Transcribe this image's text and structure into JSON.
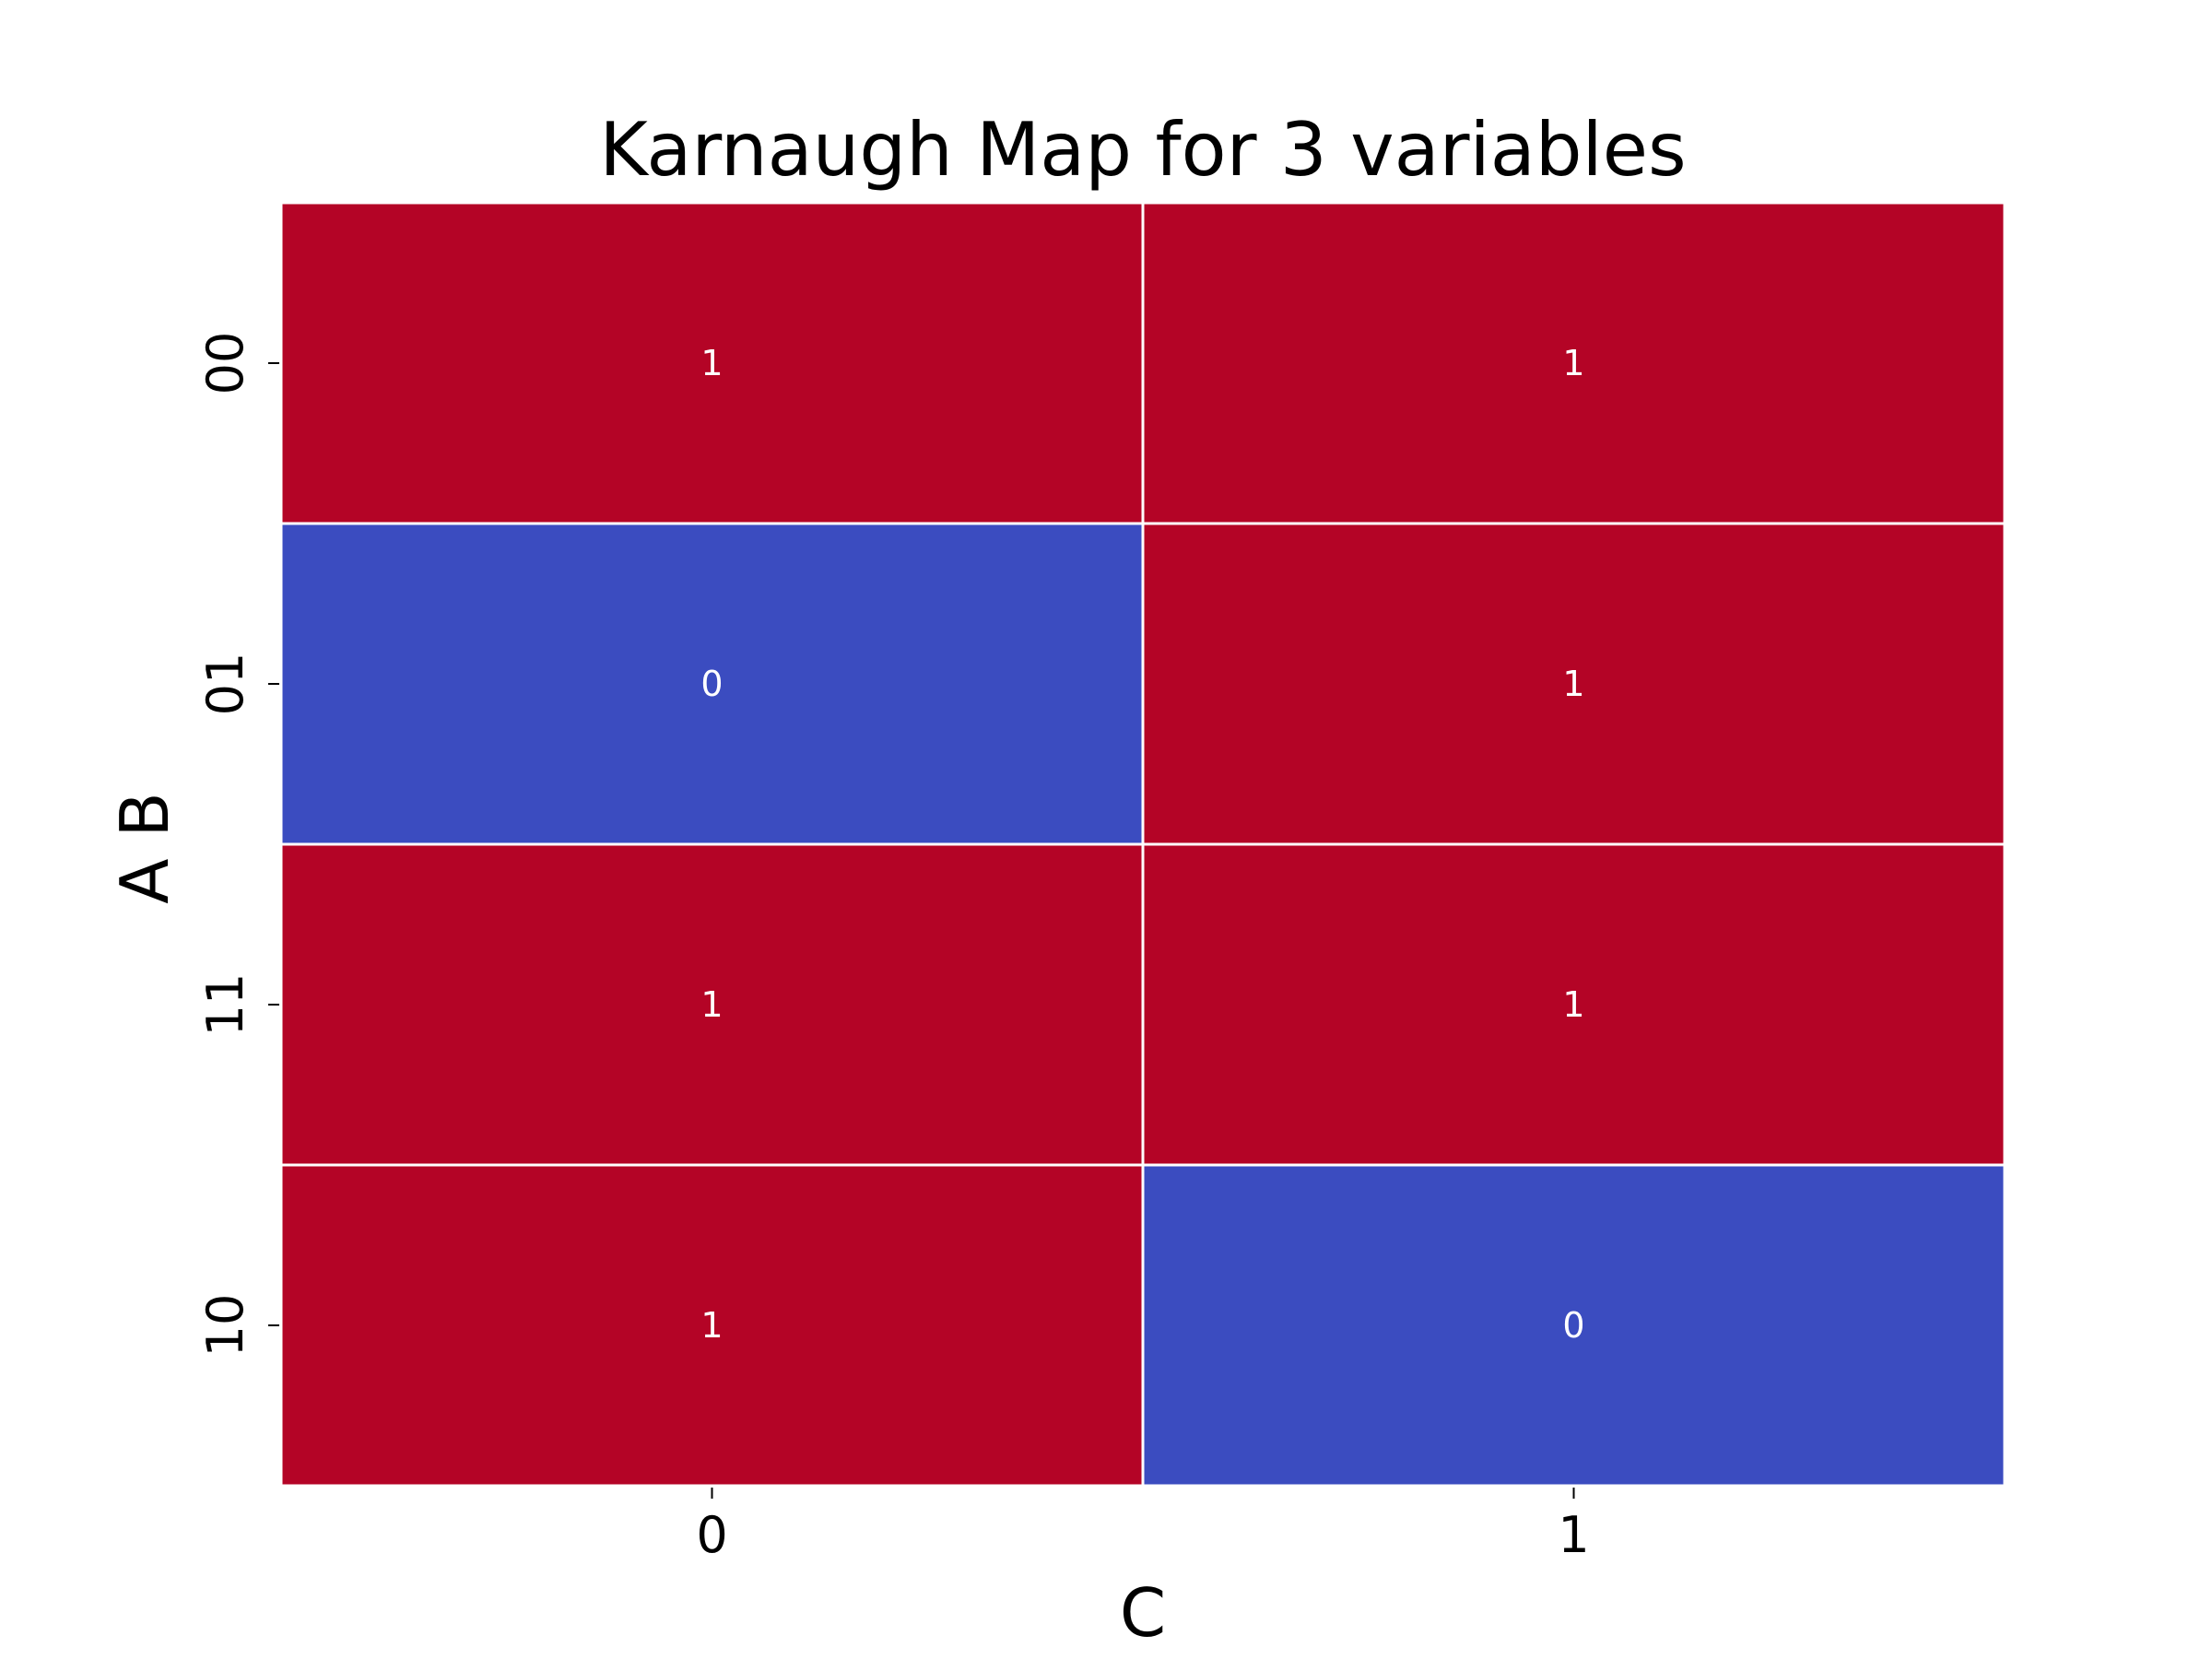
{
  "chart_data": {
    "type": "heatmap",
    "title": "Karnaugh Map for 3 variables",
    "xlabel": "C",
    "ylabel": "A B",
    "x_categories": [
      "0",
      "1"
    ],
    "y_categories": [
      "00",
      "01",
      "11",
      "10"
    ],
    "values": [
      [
        1,
        1
      ],
      [
        0,
        1
      ],
      [
        1,
        1
      ],
      [
        1,
        0
      ]
    ],
    "cell_labels": [
      [
        "1",
        "1"
      ],
      [
        "0",
        "1"
      ],
      [
        "1",
        "1"
      ],
      [
        "1",
        "0"
      ]
    ],
    "colors": {
      "one": "#b40426",
      "zero": "#3b4cc0",
      "grid": "#ffffff",
      "annotation": "#ffffff"
    },
    "colorbar": false
  }
}
